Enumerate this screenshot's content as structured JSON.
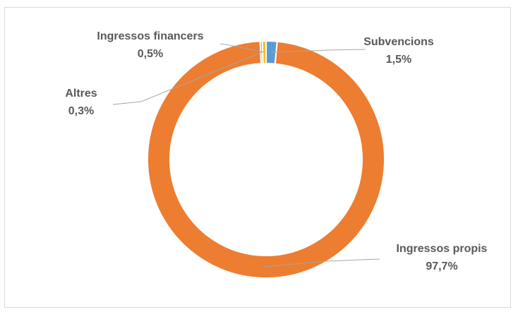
{
  "chart_data": {
    "type": "pie",
    "variant": "donut",
    "title": "",
    "legend": "none",
    "slices": [
      {
        "label": "Subvencions",
        "value_label": "1,5%",
        "value": 1.5,
        "color": "#5b9bd5"
      },
      {
        "label": "Ingressos propis",
        "value_label": "97,7%",
        "value": 97.7,
        "color": "#ed7d31"
      },
      {
        "label": "Altres",
        "value_label": "0,3%",
        "value": 0.3,
        "color": "#a5a5a5"
      },
      {
        "label": "Ingressos financers",
        "value_label": "0,5%",
        "value": 0.5,
        "color": "#ffc000"
      }
    ]
  }
}
